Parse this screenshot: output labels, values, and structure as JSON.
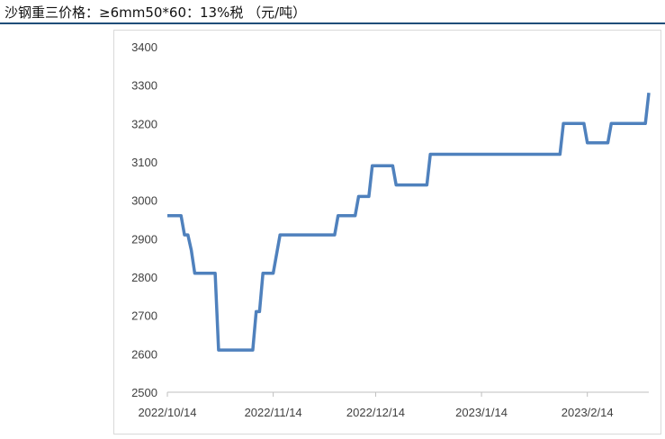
{
  "title": "沙钢重三价格：≥6mm50*60：13%税 （元/吨）",
  "colors": {
    "line": "#4f81bd",
    "axis": "#bfbfbf",
    "title_rule": "#1f4e79",
    "text": "#404040"
  },
  "chart_data": {
    "type": "line",
    "title": "沙钢重三价格：≥6mm50*60：13%税 （元/吨）",
    "xlabel": "",
    "ylabel": "",
    "ylim": [
      2500,
      3400
    ],
    "y_ticks": [
      2500,
      2600,
      2700,
      2800,
      2900,
      3000,
      3100,
      3200,
      3300,
      3400
    ],
    "x_range": [
      "2022-10-14",
      "2023-03-04"
    ],
    "x_ticks": [
      {
        "date": "2022-10-14",
        "label": "2022/10/14"
      },
      {
        "date": "2022-11-14",
        "label": "2022/11/14"
      },
      {
        "date": "2022-12-14",
        "label": "2022/12/14"
      },
      {
        "date": "2023-01-14",
        "label": "2023/1/14"
      },
      {
        "date": "2023-02-14",
        "label": "2023/2/14"
      }
    ],
    "grid": false,
    "legend": "none",
    "series": [
      {
        "points": [
          {
            "x": "2022-10-14",
            "y": 2960
          },
          {
            "x": "2022-10-18",
            "y": 2960
          },
          {
            "x": "2022-10-19",
            "y": 2910
          },
          {
            "x": "2022-10-20",
            "y": 2910
          },
          {
            "x": "2022-10-21",
            "y": 2870
          },
          {
            "x": "2022-10-22",
            "y": 2810
          },
          {
            "x": "2022-10-28",
            "y": 2810
          },
          {
            "x": "2022-10-29",
            "y": 2610
          },
          {
            "x": "2022-11-08",
            "y": 2610
          },
          {
            "x": "2022-11-09",
            "y": 2710
          },
          {
            "x": "2022-11-10",
            "y": 2710
          },
          {
            "x": "2022-11-11",
            "y": 2810
          },
          {
            "x": "2022-11-14",
            "y": 2810
          },
          {
            "x": "2022-11-16",
            "y": 2910
          },
          {
            "x": "2022-12-02",
            "y": 2910
          },
          {
            "x": "2022-12-03",
            "y": 2960
          },
          {
            "x": "2022-12-08",
            "y": 2960
          },
          {
            "x": "2022-12-09",
            "y": 3010
          },
          {
            "x": "2022-12-12",
            "y": 3010
          },
          {
            "x": "2022-12-13",
            "y": 3090
          },
          {
            "x": "2022-12-19",
            "y": 3090
          },
          {
            "x": "2022-12-20",
            "y": 3040
          },
          {
            "x": "2022-12-29",
            "y": 3040
          },
          {
            "x": "2022-12-30",
            "y": 3120
          },
          {
            "x": "2023-02-06",
            "y": 3120
          },
          {
            "x": "2023-02-07",
            "y": 3200
          },
          {
            "x": "2023-02-13",
            "y": 3200
          },
          {
            "x": "2023-02-14",
            "y": 3150
          },
          {
            "x": "2023-02-20",
            "y": 3150
          },
          {
            "x": "2023-02-21",
            "y": 3200
          },
          {
            "x": "2023-03-03",
            "y": 3200
          },
          {
            "x": "2023-03-04",
            "y": 3280
          }
        ]
      }
    ]
  }
}
